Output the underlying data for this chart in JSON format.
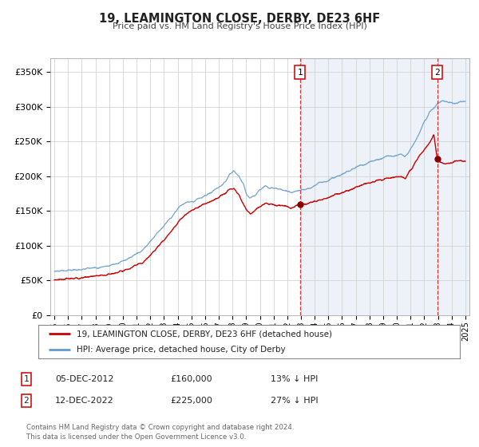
{
  "title": "19, LEAMINGTON CLOSE, DERBY, DE23 6HF",
  "subtitle": "Price paid vs. HM Land Registry's House Price Index (HPI)",
  "legend_line1": "19, LEAMINGTON CLOSE, DERBY, DE23 6HF (detached house)",
  "legend_line2": "HPI: Average price, detached house, City of Derby",
  "annotation1_date": "05-DEC-2012",
  "annotation1_price": "£160,000",
  "annotation1_hpi": "13% ↓ HPI",
  "annotation2_date": "12-DEC-2022",
  "annotation2_price": "£225,000",
  "annotation2_hpi": "27% ↓ HPI",
  "footer": "Contains HM Land Registry data © Crown copyright and database right 2024.\nThis data is licensed under the Open Government Licence v3.0.",
  "red_color": "#cc0000",
  "blue_color": "#6699cc",
  "blue_fill_color": "#ddeeff",
  "background_color": "#f0f4f8",
  "grid_color": "#cccccc",
  "ylim": [
    0,
    370000
  ],
  "yticks": [
    0,
    50000,
    100000,
    150000,
    200000,
    250000,
    300000,
    350000
  ],
  "ytick_labels": [
    "£0",
    "£50K",
    "£100K",
    "£150K",
    "£200K",
    "£250K",
    "£300K",
    "£350K"
  ],
  "sale1_x": 2012.92,
  "sale1_y": 160000,
  "sale2_x": 2022.95,
  "sale2_y": 225000,
  "vline1_x": 2012.92,
  "vline2_x": 2022.95,
  "xmin": 1994.7,
  "xmax": 2025.3
}
